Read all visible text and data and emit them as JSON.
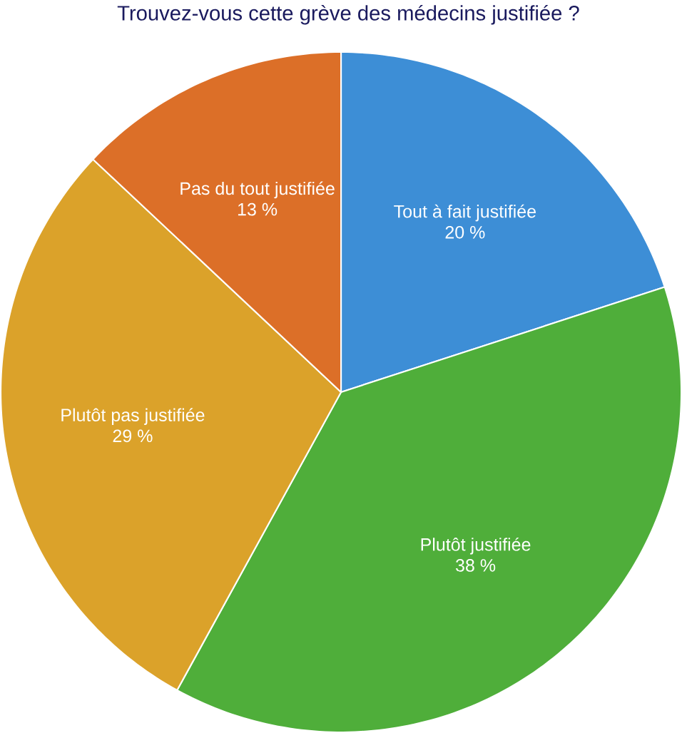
{
  "chart_data": {
    "type": "pie",
    "title": "Trouvez-vous cette grève des médecins justifiée ?",
    "categories": [
      "Tout à fait justifiée",
      "Plutôt justifiée",
      "Plutôt pas justifiée",
      "Pas du tout justifiée"
    ],
    "values": [
      20,
      38,
      29,
      13
    ],
    "colors": [
      "#3d8ed6",
      "#4fae3a",
      "#dba22a",
      "#dc6f28"
    ],
    "value_labels": [
      "20 %",
      "38 %",
      "29 %",
      "13 %"
    ]
  }
}
